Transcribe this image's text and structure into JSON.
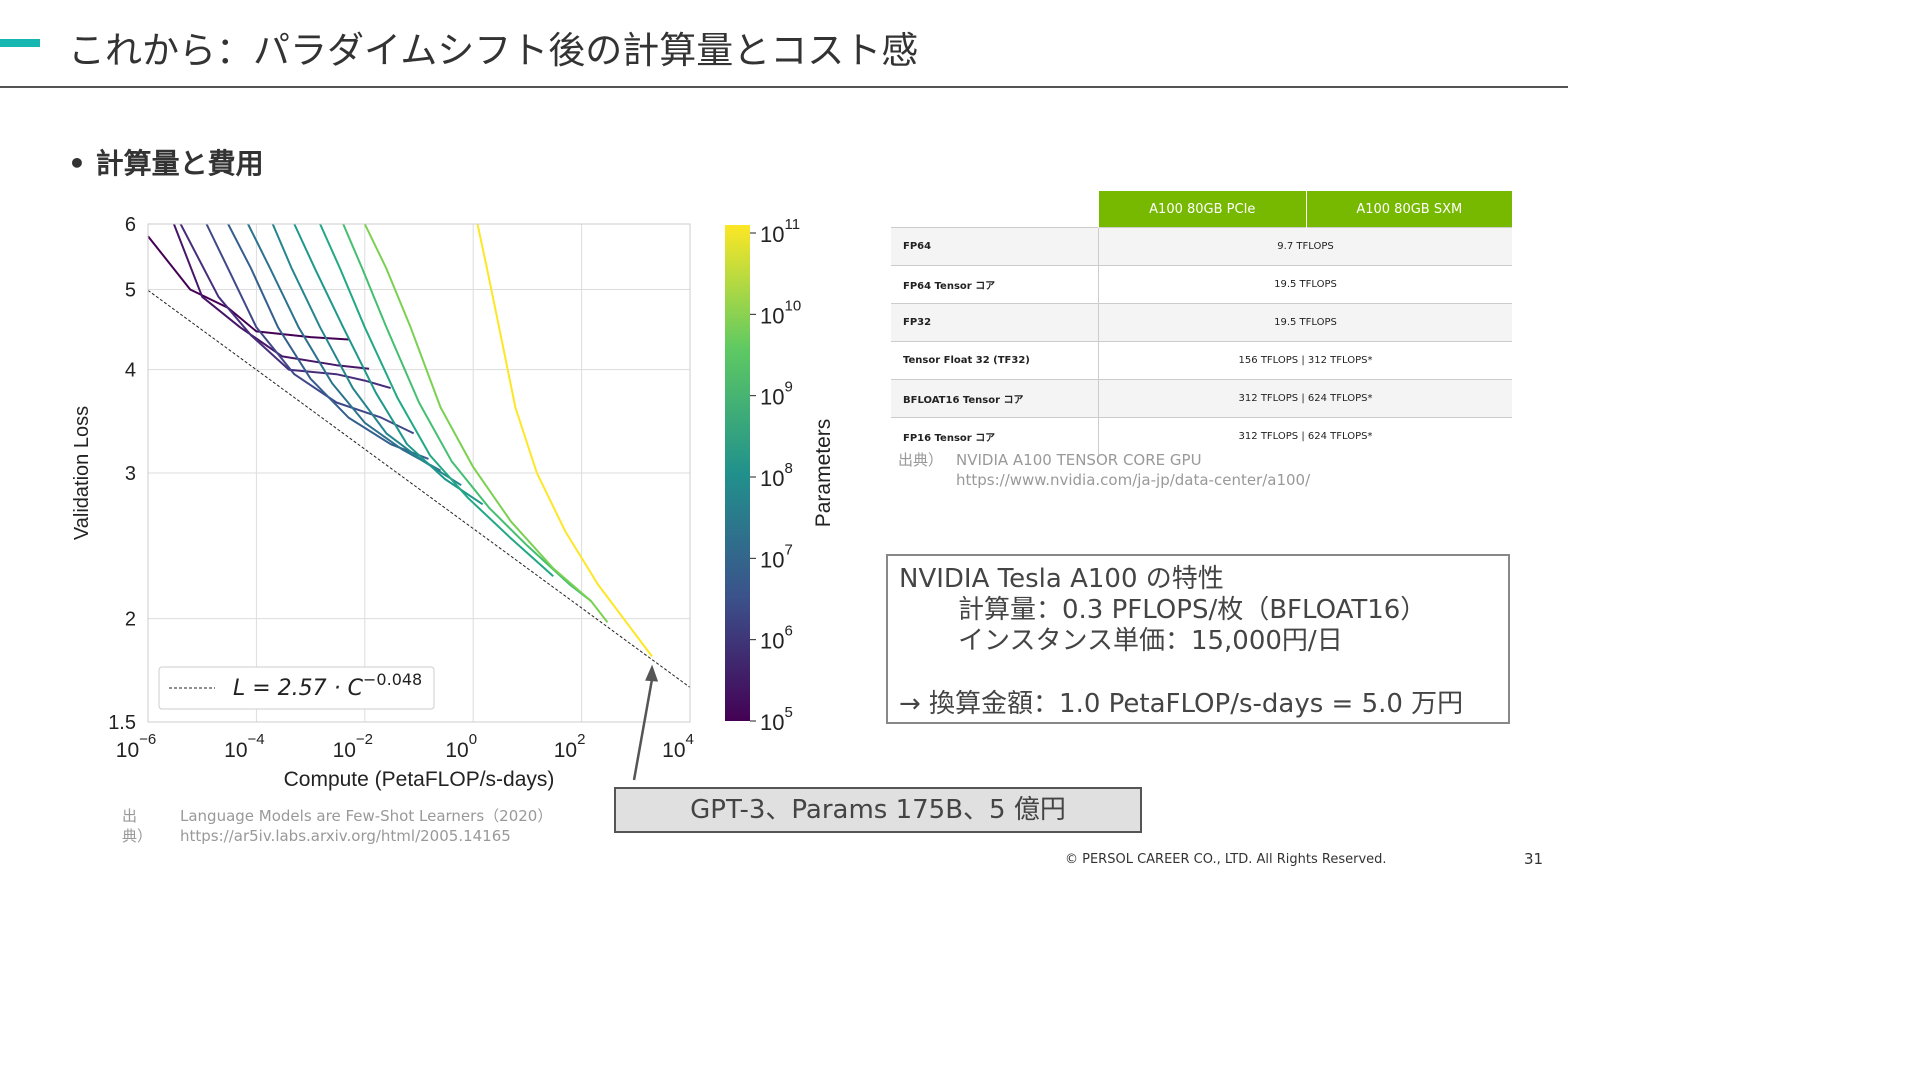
{
  "header": {
    "title": "これから：パラダイムシフト後の計算量とコスト感",
    "accent_color": "#16b7b0"
  },
  "bullet": {
    "text": "計算量と費用"
  },
  "chart_data": {
    "type": "line",
    "x_scale": "log",
    "y_scale": "log",
    "xlabel": "Compute (PetaFLOP/s-days)",
    "ylabel": "Validation Loss",
    "xlim": [
      1e-06,
      10000.0
    ],
    "ylim": [
      1.5,
      6
    ],
    "x_ticks": [
      {
        "value": 1e-06,
        "base": "10",
        "exp": "−6"
      },
      {
        "value": 0.0001,
        "base": "10",
        "exp": "−4"
      },
      {
        "value": 0.01,
        "base": "10",
        "exp": "−2"
      },
      {
        "value": 1,
        "base": "10",
        "exp": "0"
      },
      {
        "value": 100.0,
        "base": "10",
        "exp": "2"
      },
      {
        "value": 10000.0,
        "base": "10",
        "exp": "4"
      }
    ],
    "y_ticks": [
      {
        "value": 1.5,
        "label": "1.5"
      },
      {
        "value": 2,
        "label": "2"
      },
      {
        "value": 3,
        "label": "3"
      },
      {
        "value": 4,
        "label": "4"
      },
      {
        "value": 5,
        "label": "5"
      },
      {
        "value": 6,
        "label": "6"
      }
    ],
    "grid": true,
    "legend": {
      "position": "bottom-left",
      "entries": [
        {
          "style": "dashed",
          "prefix": "L = 2.57 · C",
          "exp": "−0.048"
        }
      ]
    },
    "fit": {
      "a": 2.57,
      "b": -0.048
    },
    "colorbar": {
      "label": "Parameters",
      "colormap": "viridis",
      "ticks": [
        {
          "value": 100000.0,
          "base": "10",
          "exp": "5"
        },
        {
          "value": 1000000.0,
          "base": "10",
          "exp": "6"
        },
        {
          "value": 10000000.0,
          "base": "10",
          "exp": "7"
        },
        {
          "value": 100000000.0,
          "base": "10",
          "exp": "8"
        },
        {
          "value": 1000000000.0,
          "base": "10",
          "exp": "9"
        },
        {
          "value": 10000000000.0,
          "base": "10",
          "exp": "10"
        },
        {
          "value": 100000000000.0,
          "base": "10",
          "exp": "11"
        }
      ]
    },
    "series": [
      {
        "params": 100000.0,
        "color": "#440154",
        "points": [
          [
            1e-06,
            5.8
          ],
          [
            6e-06,
            5.0
          ],
          [
            3e-05,
            4.75
          ],
          [
            0.0001,
            4.45
          ],
          [
            0.001,
            4.38
          ],
          [
            0.005,
            4.35
          ]
        ]
      },
      {
        "params": 250000.0,
        "color": "#481668",
        "points": [
          [
            3e-06,
            6.0
          ],
          [
            1e-05,
            4.9
          ],
          [
            5e-05,
            4.5
          ],
          [
            0.0003,
            4.15
          ],
          [
            0.003,
            4.05
          ],
          [
            0.012,
            4.01
          ]
        ]
      },
      {
        "params": 600000.0,
        "color": "#472e7c",
        "points": [
          [
            4e-06,
            6.0
          ],
          [
            2e-05,
            4.9
          ],
          [
            8e-05,
            4.4
          ],
          [
            0.0004,
            4.0
          ],
          [
            0.003,
            3.95
          ],
          [
            0.01,
            3.88
          ],
          [
            0.03,
            3.8
          ]
        ]
      },
      {
        "params": 1500000.0,
        "color": "#3f4889",
        "points": [
          [
            1.2e-05,
            6.0
          ],
          [
            3e-05,
            5.3
          ],
          [
            0.0001,
            4.5
          ],
          [
            0.0005,
            3.95
          ],
          [
            0.003,
            3.65
          ],
          [
            0.02,
            3.5
          ],
          [
            0.08,
            3.35
          ]
        ]
      },
      {
        "params": 4000000.0,
        "color": "#355f8d",
        "points": [
          [
            3e-05,
            6.0
          ],
          [
            8e-05,
            5.3
          ],
          [
            0.00025,
            4.5
          ],
          [
            0.001,
            3.9
          ],
          [
            0.005,
            3.5
          ],
          [
            0.03,
            3.25
          ],
          [
            0.15,
            3.12
          ]
        ]
      },
      {
        "params": 10000000.0,
        "color": "#2c728e",
        "points": [
          [
            7e-05,
            6.0
          ],
          [
            0.00018,
            5.3
          ],
          [
            0.0006,
            4.5
          ],
          [
            0.0025,
            3.85
          ],
          [
            0.01,
            3.45
          ],
          [
            0.05,
            3.2
          ],
          [
            0.25,
            3.02
          ]
        ]
      },
      {
        "params": 30000000.0,
        "color": "#25858e",
        "points": [
          [
            0.0002,
            6.0
          ],
          [
            0.00045,
            5.3
          ],
          [
            0.0015,
            4.5
          ],
          [
            0.006,
            3.8
          ],
          [
            0.025,
            3.35
          ],
          [
            0.12,
            3.1
          ],
          [
            0.6,
            2.9
          ]
        ]
      },
      {
        "params": 100000000.0,
        "color": "#1f988b",
        "points": [
          [
            0.0005,
            6.0
          ],
          [
            0.0012,
            5.3
          ],
          [
            0.004,
            4.5
          ],
          [
            0.016,
            3.75
          ],
          [
            0.06,
            3.25
          ],
          [
            0.3,
            2.95
          ],
          [
            1.5,
            2.75
          ]
        ]
      },
      {
        "params": 350000000.0,
        "color": "#22a884",
        "points": [
          [
            0.0015,
            6.0
          ],
          [
            0.0035,
            5.3
          ],
          [
            0.01,
            4.5
          ],
          [
            0.04,
            3.7
          ],
          [
            0.16,
            3.15
          ],
          [
            0.8,
            2.8
          ],
          [
            5,
            2.5
          ],
          [
            30,
            2.25
          ]
        ]
      },
      {
        "params": 800000000.0,
        "color": "#44bf70",
        "points": [
          [
            0.004,
            6.0
          ],
          [
            0.009,
            5.3
          ],
          [
            0.025,
            4.5
          ],
          [
            0.1,
            3.65
          ],
          [
            0.4,
            3.1
          ],
          [
            2,
            2.72
          ],
          [
            10,
            2.45
          ],
          [
            60,
            2.2
          ],
          [
            150,
            2.1
          ]
        ]
      },
      {
        "params": 2500000000.0,
        "color": "#7ad151",
        "points": [
          [
            0.01,
            6.0
          ],
          [
            0.025,
            5.3
          ],
          [
            0.07,
            4.5
          ],
          [
            0.25,
            3.6
          ],
          [
            1,
            3.05
          ],
          [
            5,
            2.62
          ],
          [
            30,
            2.3
          ],
          [
            150,
            2.1
          ],
          [
            300,
            1.98
          ]
        ]
      },
      {
        "params": 175000000000.0,
        "color": "#fde725",
        "points": [
          [
            1.2,
            6.0
          ],
          [
            1.8,
            5.3
          ],
          [
            3,
            4.5
          ],
          [
            6,
            3.6
          ],
          [
            15,
            3.0
          ],
          [
            50,
            2.55
          ],
          [
            200,
            2.2
          ],
          [
            800,
            1.95
          ],
          [
            2000,
            1.8
          ]
        ]
      }
    ],
    "annotation_target": {
      "x": 2000,
      "y": 1.75
    }
  },
  "chart_source": {
    "label": "出典）",
    "title": "Language Models are Few-Shot Learners（2020）",
    "url": "https://ar5iv.labs.arxiv.org/html/2005.14165"
  },
  "spec_table": {
    "headers": [
      "A100 80GB PCIe",
      "A100 80GB SXM"
    ],
    "header_color": "#76b900",
    "rows": [
      {
        "label": "FP64",
        "value": "9.7 TFLOPS"
      },
      {
        "label": "FP64 Tensor コア",
        "value": "19.5 TFLOPS"
      },
      {
        "label": "FP32",
        "value": "19.5 TFLOPS"
      },
      {
        "label": "Tensor Float 32 (TF32)",
        "value": "156 TFLOPS | 312 TFLOPS*"
      },
      {
        "label": "BFLOAT16 Tensor コア",
        "value": "312 TFLOPS | 624 TFLOPS*"
      },
      {
        "label": "FP16 Tensor コア",
        "value": "312 TFLOPS | 624 TFLOPS*"
      }
    ]
  },
  "table_source": {
    "label": "出典）",
    "title": "NVIDIA A100 TENSOR CORE GPU",
    "url": "https://www.nvidia.com/ja-jp/data-center/a100/"
  },
  "info_box": {
    "line1": "NVIDIA Tesla A100 の特性",
    "line2": "計算量：0.3 PFLOPS/枚（BFLOAT16）",
    "line3": "インスタンス単価：15,000円/日",
    "line4": "→ 換算金額：1.0 PetaFLOP/s-days = 5.0 万円"
  },
  "gpt_box": {
    "text": "GPT-3、Params 175B、5 億円"
  },
  "footer": {
    "copyright": "© PERSOL CAREER CO., LTD. All Rights Reserved.",
    "page_number": "31"
  }
}
